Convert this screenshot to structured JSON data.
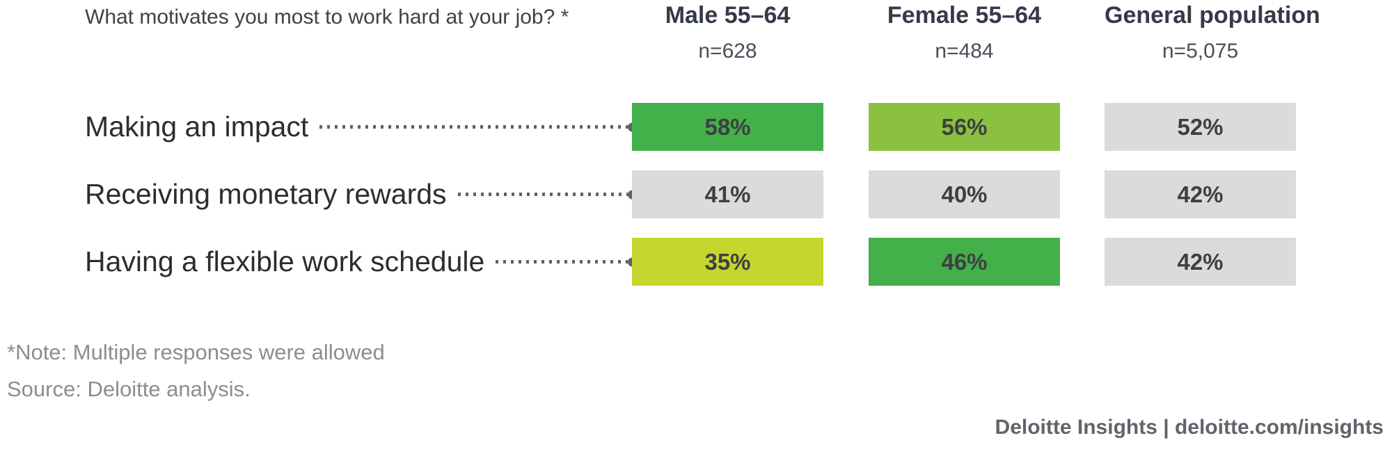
{
  "header": {
    "title": "What motivates you most to work hard at your job? *",
    "columns": [
      {
        "label": "Male 55–64",
        "n": "n=628"
      },
      {
        "label": "Female 55–64",
        "n": "n=484"
      },
      {
        "label": "General population",
        "n": "n=5,075"
      }
    ]
  },
  "rows": [
    {
      "label": "Making an impact",
      "cells": [
        {
          "value": "58%",
          "color": "#44b04a"
        },
        {
          "value": "56%",
          "color": "#8bc140"
        },
        {
          "value": "52%",
          "color": "#d9dcd8"
        }
      ]
    },
    {
      "label": "Receiving monetary rewards",
      "cells": [
        {
          "value": "41%",
          "color": "#d9dcd8"
        },
        {
          "value": "40%",
          "color": "#d9dcd8"
        },
        {
          "value": "42%",
          "color": "#d9dcd8"
        }
      ]
    },
    {
      "label": "Having a flexible work schedule",
      "cells": [
        {
          "value": "35%",
          "color": "#c5d62e"
        },
        {
          "value": "46%",
          "color": "#44b04a"
        },
        {
          "value": "42%",
          "color": "#d9dcd8"
        }
      ]
    }
  ],
  "footer": {
    "note": "*Note: Multiple responses were allowed",
    "source": "Source: Deloitte analysis.",
    "branding": "Deloitte Insights | deloitte.com/insights"
  },
  "colors": {
    "bar_green": "#44b04a",
    "bar_light_green": "#8bc140",
    "bar_lime": "#c5d62e",
    "bar_gray": "#d9dcd8",
    "leader_dots": "#5d6165",
    "value_text": "#3e3f41",
    "header_text": "#353a48",
    "label_text": "#2a2d31",
    "note_text": "#8a8d91",
    "branding_text": "#60646b"
  },
  "chart_data": {
    "type": "table",
    "title": "What motivates you most to work hard at your job? *",
    "categories": [
      "Making an impact",
      "Receiving monetary rewards",
      "Having a flexible work schedule"
    ],
    "series": [
      {
        "name": "Male 55–64",
        "sample_size": "n=628",
        "values": [
          58,
          41,
          35
        ]
      },
      {
        "name": "Female 55–64",
        "sample_size": "n=484",
        "values": [
          56,
          40,
          46
        ]
      },
      {
        "name": "General population",
        "sample_size": "n=5,075",
        "values": [
          52,
          42,
          42
        ]
      }
    ],
    "unit": "%",
    "note": "*Note: Multiple responses were allowed",
    "source": "Source: Deloitte analysis.",
    "legend_position": "none",
    "grid": false
  }
}
